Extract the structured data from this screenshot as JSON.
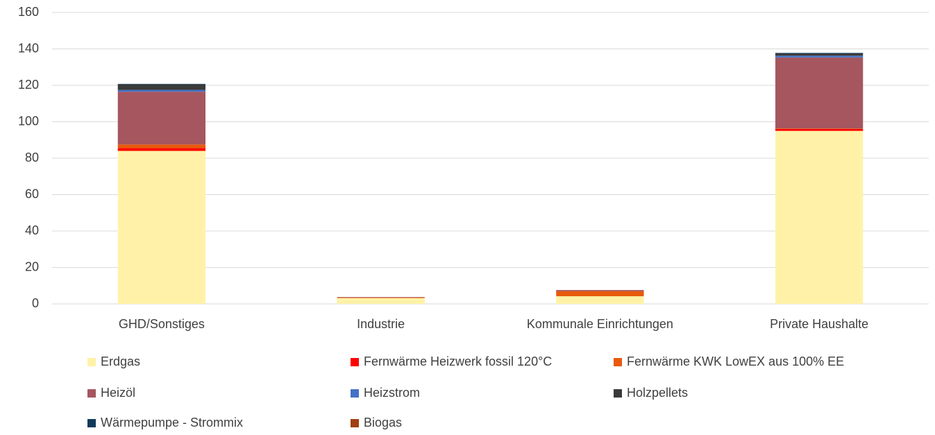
{
  "chart_data": {
    "type": "stacked_bar",
    "categories": [
      "GHD/Sonstiges",
      "Industrie",
      "Kommunale Einrichtungen",
      "Private Haushalte"
    ],
    "series": [
      {
        "name": "Erdgas",
        "color": "#fff2a8",
        "values": [
          84,
          3.2,
          4.2,
          95
        ]
      },
      {
        "name": "Fernwärme Heizwerk fossil 120°C",
        "color": "#ff0000",
        "values": [
          1.5,
          0,
          0,
          1
        ]
      },
      {
        "name": "Fernwärme KWK LowEX aus 100% EE",
        "color": "#e85a0c",
        "values": [
          2,
          0.3,
          2.7,
          0.3
        ]
      },
      {
        "name": "Heizöl",
        "color": "#a5565f",
        "values": [
          29,
          0.3,
          0.7,
          39
        ]
      },
      {
        "name": "Heizstrom",
        "color": "#4472c4",
        "values": [
          1,
          0,
          0,
          1
        ]
      },
      {
        "name": "Holzpellets",
        "color": "#3a3a3a",
        "values": [
          3,
          0,
          0,
          1.2
        ]
      },
      {
        "name": "Wärmepumpe - Strommix",
        "color": "#0e3a5a",
        "values": [
          0.3,
          0,
          0,
          0.3
        ]
      },
      {
        "name": "Biogas",
        "color": "#a04010",
        "values": [
          0,
          0,
          0,
          0
        ]
      }
    ],
    "ylim": [
      0,
      160
    ],
    "yticks": [
      0,
      20,
      40,
      60,
      80,
      100,
      120,
      140,
      160
    ],
    "grid": true,
    "legend": "bottom"
  }
}
